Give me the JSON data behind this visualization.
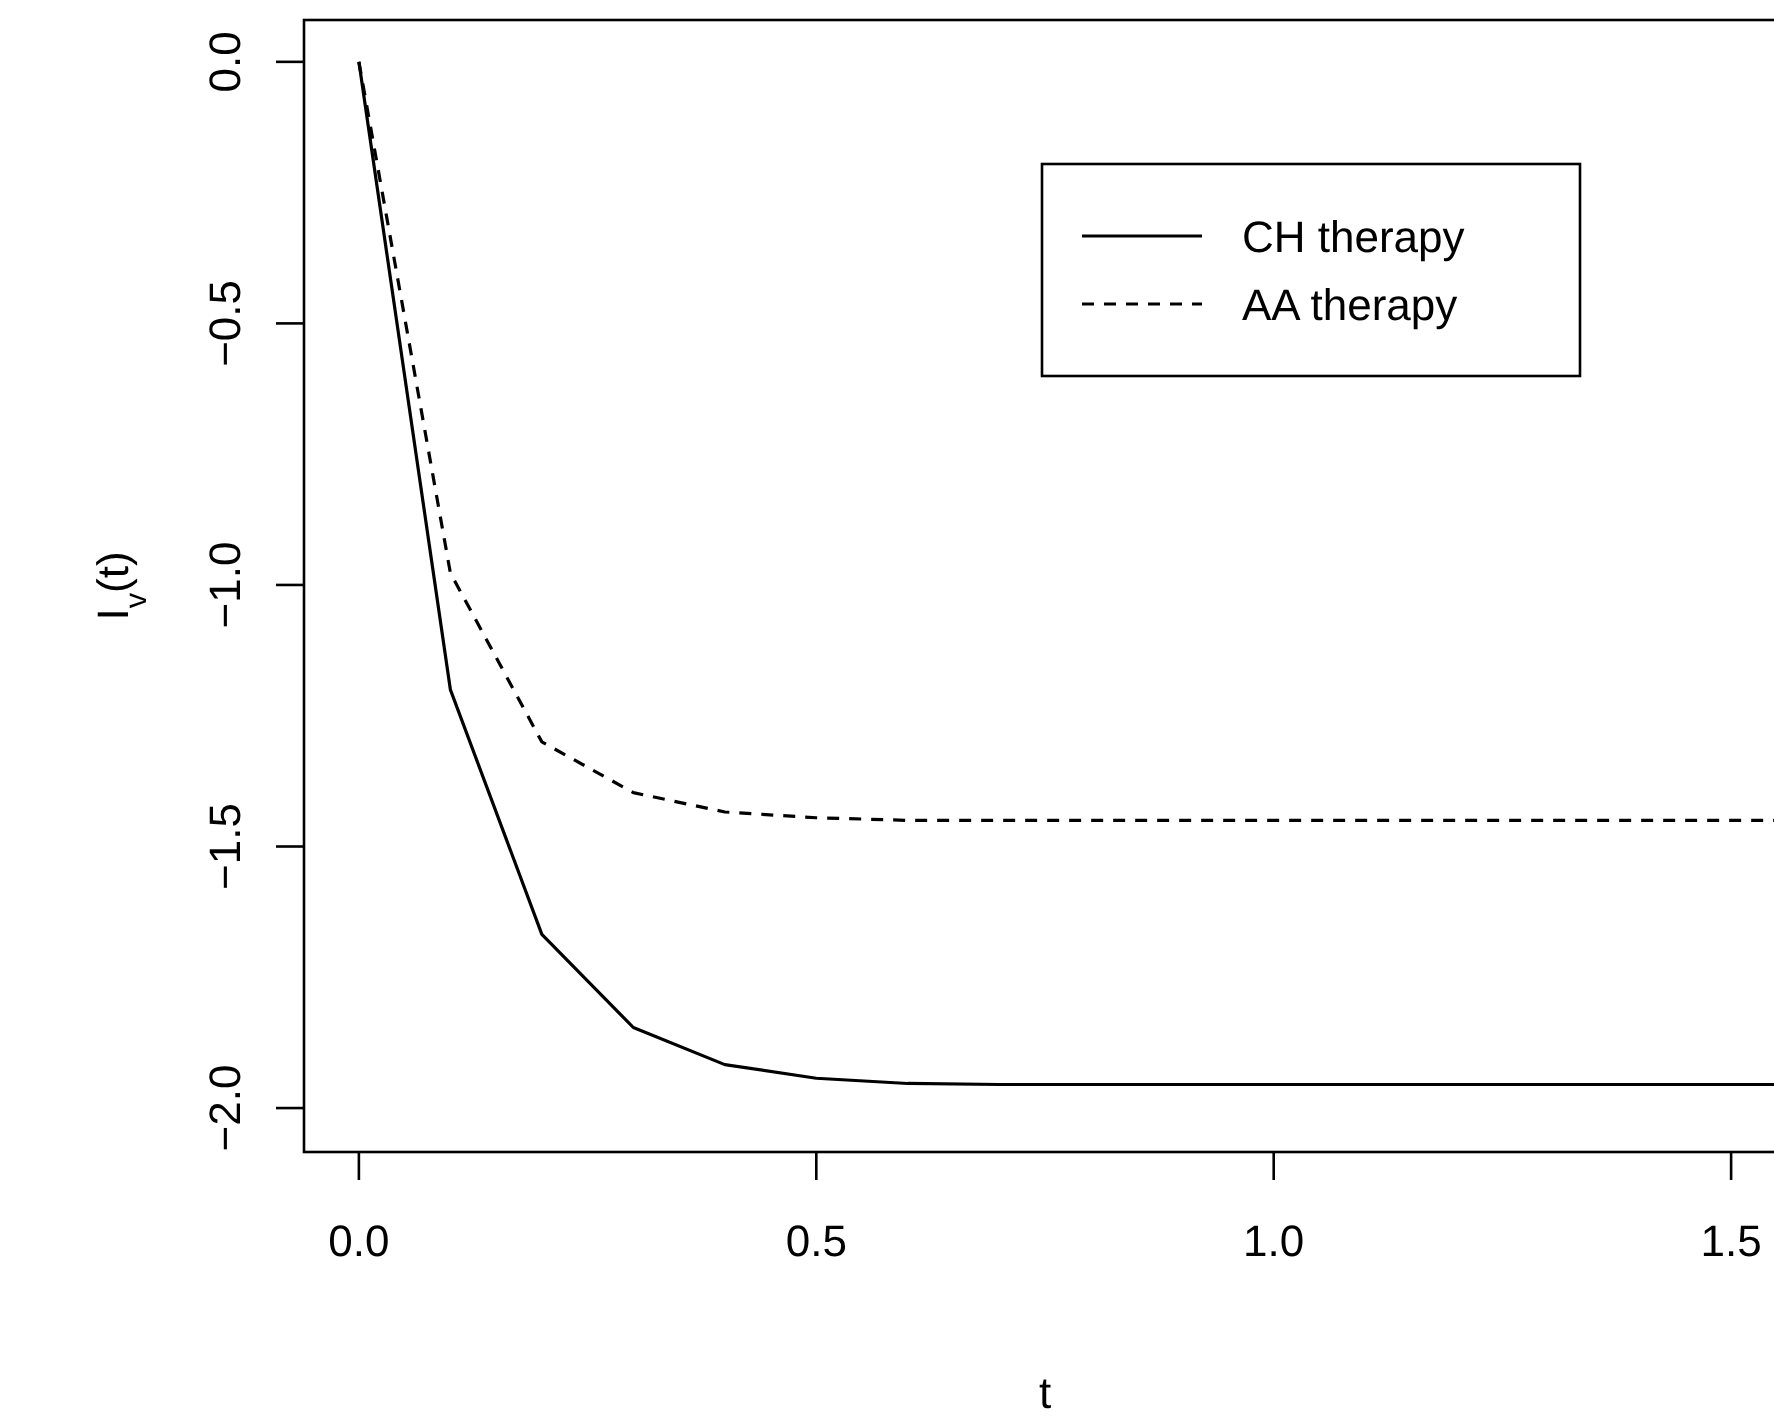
{
  "chart_data": {
    "type": "line",
    "xlabel": "t",
    "ylabel": "I$_{v}$(t)",
    "x": [
      0,
      0.1,
      0.2,
      0.3,
      0.4,
      0.5,
      0.6,
      0.7,
      0.8,
      0.9,
      1.0,
      1.1,
      1.2,
      1.3,
      1.4,
      1.5,
      1.55
    ],
    "series": [
      {
        "name": "CH therapy",
        "color": "#000000",
        "line_style": "solid",
        "values": [
          0,
          -1.2,
          -1.668,
          -1.846,
          -1.917,
          -1.943,
          -1.953,
          -1.955,
          -1.955,
          -1.955,
          -1.955,
          -1.955,
          -1.955,
          -1.955,
          -1.955,
          -1.955,
          -1.955
        ]
      },
      {
        "name": "AA therapy",
        "color": "#000000",
        "line_style": "dashed",
        "values": [
          0,
          -0.977,
          -1.3,
          -1.397,
          -1.434,
          -1.445,
          -1.45,
          -1.45,
          -1.45,
          -1.45,
          -1.45,
          -1.45,
          -1.45,
          -1.45,
          -1.45,
          -1.45,
          -1.45
        ]
      }
    ],
    "xlim": [
      -0.06,
      1.56
    ],
    "xticks": [
      {
        "value": 0,
        "label": "0.0"
      },
      0.5,
      {
        "value": 1,
        "label": "1.0"
      },
      1.5
    ],
    "ylim": [
      -2.084,
      0.08
    ],
    "yticks": [
      {
        "value": 0,
        "label": "0.0"
      },
      -0.5,
      {
        "value": -1,
        "label": "−1.0"
      },
      {
        "value": -1.5,
        "label": "−1.5"
      },
      {
        "value": -2,
        "label": "−2.0"
      }
    ],
    "grid": false,
    "legend": "top right"
  }
}
